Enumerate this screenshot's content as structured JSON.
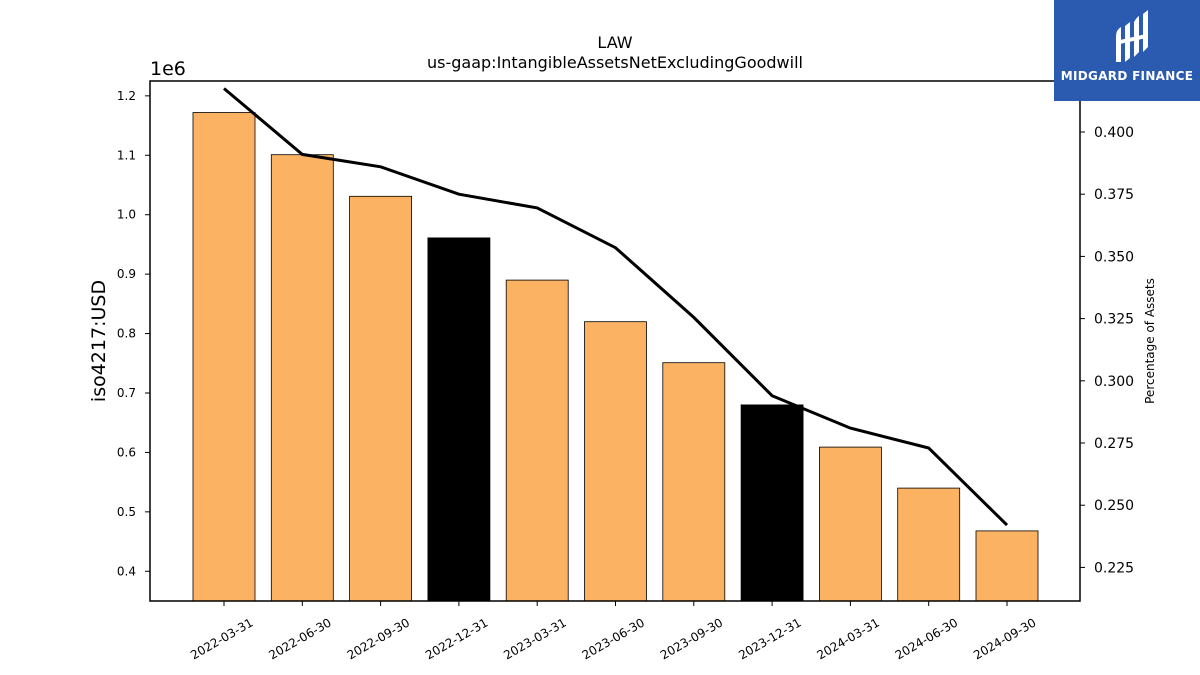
{
  "colors": {
    "bar_default": "#fbb363",
    "bar_highlight": "#000000",
    "line": "#000000",
    "logo_bg": "#2b5bb0"
  },
  "logo": {
    "text": "MIDGARD FINANCE",
    "icon": "midgard-logo-icon"
  },
  "chart_data": {
    "type": "bar",
    "title": "LAW",
    "subtitle": "us-gaap:IntangibleAssetsNetExcludingGoodwill",
    "ylabel": "iso4217:USD",
    "y_offset_label": "1e6",
    "y2label": "Percentage of Assets",
    "categories": [
      "2022-03-31",
      "2022-06-30",
      "2022-09-30",
      "2022-12-31",
      "2023-03-31",
      "2023-06-30",
      "2023-09-30",
      "2023-12-31",
      "2024-03-31",
      "2024-06-30",
      "2024-09-30"
    ],
    "series": [
      {
        "axis": "left",
        "kind": "bar",
        "values": [
          1172000,
          1101000,
          1031000,
          961000,
          890000,
          820000,
          751000,
          680000,
          609000,
          540000,
          468000
        ],
        "highlighted": [
          false,
          false,
          false,
          true,
          false,
          false,
          false,
          true,
          false,
          false,
          false
        ]
      },
      {
        "axis": "right",
        "kind": "line",
        "values": [
          0.4175,
          0.391,
          0.386,
          0.375,
          0.3695,
          0.3535,
          0.3255,
          0.294,
          0.281,
          0.273,
          0.242
        ]
      }
    ],
    "ylim": [
      350000,
      1225000
    ],
    "y2lim": [
      0.2115,
      0.4205
    ],
    "yticks": [
      0.4,
      0.5,
      0.6,
      0.7,
      0.8,
      0.9,
      1.0,
      1.1,
      1.2
    ],
    "ytick_labels": [
      "0.4",
      "0.5",
      "0.6",
      "0.7",
      "0.8",
      "0.9",
      "1.0",
      "1.1",
      "1.2"
    ],
    "y2ticks": [
      0.225,
      0.25,
      0.275,
      0.3,
      0.325,
      0.35,
      0.375,
      0.4
    ],
    "y2tick_labels": [
      "0.225",
      "0.250",
      "0.275",
      "0.300",
      "0.325",
      "0.350",
      "0.375",
      "0.400"
    ],
    "grid": false,
    "legend": "none"
  }
}
